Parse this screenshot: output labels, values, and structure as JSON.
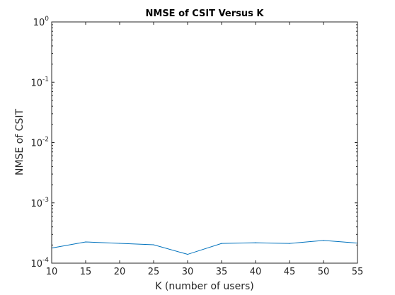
{
  "chart_data": {
    "type": "line",
    "title": "NMSE of CSIT Versus K",
    "xlabel": "K (number of users)",
    "ylabel": "NMSE of CSIT",
    "x": [
      10,
      15,
      20,
      25,
      30,
      35,
      40,
      45,
      50,
      55
    ],
    "series": [
      {
        "values": [
          0.000178,
          0.000225,
          0.000213,
          0.000202,
          0.00014,
          0.000212,
          0.000218,
          0.000212,
          0.000238,
          0.000215
        ]
      }
    ],
    "xlim": [
      10,
      55
    ],
    "ylim": [
      0.0001,
      1
    ],
    "yscale": "log",
    "xticks": [
      "10",
      "15",
      "20",
      "25",
      "30",
      "35",
      "40",
      "45",
      "50",
      "55"
    ],
    "yticks": [
      {
        "base": "10",
        "exp": "-4"
      },
      {
        "base": "10",
        "exp": "-3"
      },
      {
        "base": "10",
        "exp": "-2"
      },
      {
        "base": "10",
        "exp": "-1"
      },
      {
        "base": "10",
        "exp": "0"
      }
    ],
    "grid": false,
    "line_color": "#0072BD",
    "axis_color": "#262626"
  }
}
